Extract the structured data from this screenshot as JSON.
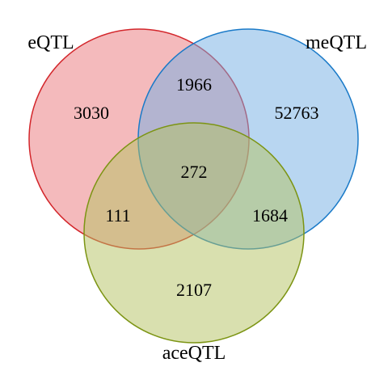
{
  "diagram": {
    "type": "venn-3",
    "sets": [
      {
        "key": "e",
        "name": "eQTL",
        "fill": "#e9767a",
        "stroke": "#d3262b"
      },
      {
        "key": "me",
        "name": "meQTL",
        "fill": "#71aee3",
        "stroke": "#1a7ac8"
      },
      {
        "key": "ace",
        "name": "aceQTL",
        "fill": "#b4c25f",
        "stroke": "#7c9413"
      }
    ],
    "regions": {
      "only_eQTL": "3030",
      "only_meQTL": "52763",
      "only_aceQTL": "2107",
      "eQTL_meQTL": "1966",
      "eQTL_aceQTL": "111",
      "meQTL_aceQTL": "1684",
      "all_three": "272"
    }
  }
}
